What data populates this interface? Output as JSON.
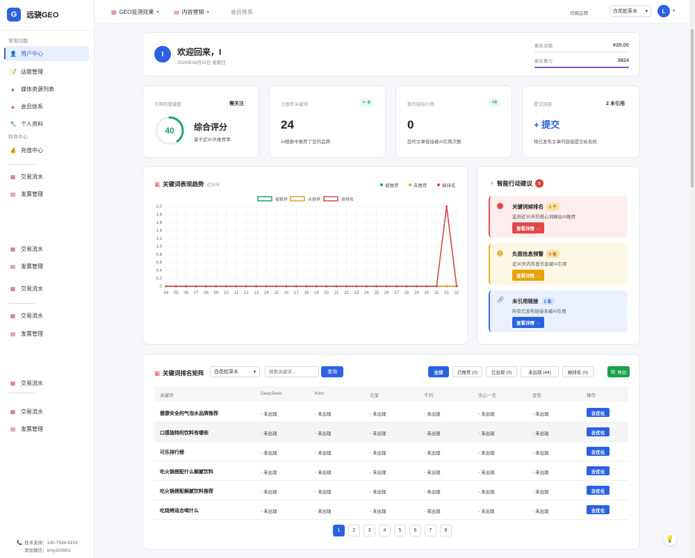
{
  "app": {
    "name": "远骁GEO",
    "logo_letter": "G"
  },
  "sidebar": {
    "section1": "常用功能",
    "section2": "财务中心",
    "items": [
      {
        "label": "用户中心",
        "icon": "user-icon",
        "glyph": "👤",
        "active": true
      },
      {
        "label": "话题管理",
        "icon": "topic-icon",
        "glyph": "📝"
      },
      {
        "label": "媒体资源列表",
        "icon": "media-icon",
        "glyph": "▲"
      },
      {
        "label": "会员体系",
        "icon": "member-icon",
        "glyph": "▲"
      },
      {
        "label": "个人资料",
        "icon": "wrench-icon",
        "glyph": "🔧"
      },
      {
        "label": "充值中心",
        "icon": "recharge-icon",
        "glyph": "💰"
      },
      {
        "label": "交易流水",
        "icon": "chart-icon",
        "glyph": "▦"
      },
      {
        "label": "发票管理",
        "icon": "invoice-icon",
        "glyph": "▤"
      },
      {
        "label": "交易流水",
        "icon": "chart-icon",
        "glyph": "▦"
      },
      {
        "label": "发票管理",
        "icon": "invoice-icon",
        "glyph": "▤"
      },
      {
        "label": "交易流水",
        "icon": "chart-icon",
        "glyph": "▦"
      },
      {
        "label": "交易流水",
        "icon": "chart-icon",
        "glyph": "▦"
      },
      {
        "label": "发票管理",
        "icon": "invoice-icon",
        "glyph": "▤"
      },
      {
        "label": "交易流水",
        "icon": "chart-icon",
        "glyph": "▦"
      },
      {
        "label": "交易流水",
        "icon": "chart-icon",
        "glyph": "▦"
      },
      {
        "label": "发票管理",
        "icon": "invoice-icon",
        "glyph": "▤"
      }
    ],
    "support_phone": "技术支持：130-7534-9103",
    "support_wechat": "添加微信：kmy200501"
  },
  "topbar": {
    "nav": [
      "GEO监测效果",
      "内容营销",
      "会员体系"
    ],
    "brand_label": "切换品牌",
    "brand_value": "白花蛇草水",
    "avatar_letter": "L"
  },
  "welcome": {
    "avatar_letter": "I",
    "title": "欢迎回来，I",
    "date": "2026年08月02日 星期日",
    "balance_label": "剩余余额",
    "balance_value": "¥20.00",
    "compute_label": "剩余算力",
    "compute_value": "3824",
    "compute_fill": 1.0,
    "balance_fill": 0.0
  },
  "stats": {
    "authority": {
      "label": "引用权健康度",
      "badge": "需关注",
      "score": "40",
      "score_fraction": 0.4,
      "title": "综合评分",
      "desc": "基于近30天推荐率"
    },
    "keywords": {
      "label": "已推荐关键词",
      "badge": "+ -6",
      "value": "24",
      "desc": "AI搜索中推荐了您的品牌"
    },
    "links": {
      "label": "我的链接引用",
      "badge": "+0",
      "value": "0",
      "desc": "您的文章链接被AI引用次数"
    },
    "submit": {
      "label": "提交回链",
      "badge": "2 未引用",
      "value": "+ 提交",
      "desc": "将已发布文章的链接提交给系统"
    }
  },
  "trend": {
    "title": "关键词表现趋势",
    "subtitle": "近30天",
    "legend_top": [
      "被推荐",
      "未推荐",
      "掉排名"
    ],
    "legend_colors": [
      "#22a06b",
      "#e0a030",
      "#d04848"
    ]
  },
  "chart_data": {
    "type": "line",
    "categories": [
      "04",
      "05",
      "06",
      "07",
      "08",
      "09",
      "10",
      "11",
      "12",
      "13",
      "14",
      "15",
      "16",
      "17",
      "18",
      "19",
      "20",
      "21",
      "22",
      "23",
      "24",
      "25",
      "26",
      "27",
      "28",
      "29",
      "30",
      "31",
      "01",
      "02"
    ],
    "series": [
      {
        "name": "被推荐",
        "color": "#22a06b",
        "values": [
          0,
          0,
          0,
          0,
          0,
          0,
          0,
          0,
          0,
          0,
          0,
          0,
          0,
          0,
          0,
          0,
          0,
          0,
          0,
          0,
          0,
          0,
          0,
          0,
          0,
          0,
          0,
          0,
          0,
          0
        ]
      },
      {
        "name": "未推荐",
        "color": "#e0a030",
        "values": [
          0,
          0,
          0,
          0,
          0,
          0,
          0,
          0,
          0,
          0,
          0,
          0,
          0,
          0,
          0,
          0,
          0,
          0,
          0,
          0,
          0,
          0,
          0,
          0,
          0,
          0,
          0,
          0,
          0,
          0
        ]
      },
      {
        "name": "掉排名",
        "color": "#d04848",
        "values": [
          0,
          0,
          0,
          0,
          0,
          0,
          0,
          0,
          0,
          0,
          0,
          0,
          0,
          0,
          0,
          0,
          0,
          0,
          0,
          0,
          0,
          0,
          0,
          0,
          0,
          0,
          0,
          0,
          2,
          0
        ]
      }
    ],
    "yticks": [
      "0",
      "0.2",
      "0.4",
      "0.6",
      "0.8",
      "1.0",
      "1.2",
      "1.4",
      "1.6",
      "1.8",
      "2.0"
    ],
    "ylim": [
      0,
      2
    ],
    "grid": true,
    "legend": "top-center"
  },
  "actions": {
    "title": "智能行动建议",
    "count": "0",
    "items": [
      {
        "title": "关键词掉排名",
        "count": "0 个",
        "desc": "监测近30天的核心词掉出AI推荐",
        "button": "查看详情 →"
      },
      {
        "title": "负面信息预警",
        "count": "0 条",
        "desc": "近30天内负面信息被AI引用",
        "button": "查看详情 →"
      },
      {
        "title": "未引用链接",
        "count": "2 条",
        "desc": "所有已发布链接未被AI引用",
        "button": "查看详情 →"
      }
    ]
  },
  "matrix": {
    "title": "关键词排名矩阵",
    "brand": "白花蛇草水",
    "search_placeholder": "搜索关键词...",
    "query_btn": "查询",
    "filters": [
      "全部",
      "已推荐 (0)",
      "已出现 (0)",
      "未出现 (44)",
      "掉排名 (0)"
    ],
    "export_btn": "导出",
    "columns": [
      "关键词",
      "DeepSeek",
      "Kimi",
      "元宝",
      "千问",
      "文心一言",
      "豆包",
      "操作"
    ],
    "rows": [
      {
        "keyword": "健康安全的气泡水品牌推荐",
        "cells": [
          "未出现",
          "未出现",
          "未出现",
          "未出现",
          "未出现",
          "未出现"
        ],
        "action": "去优化"
      },
      {
        "keyword": "口感独特的饮料有哪些",
        "cells": [
          "未出现",
          "未出现",
          "未出现",
          "未出现",
          "未出现",
          "未出现"
        ],
        "action": "去优化"
      },
      {
        "keyword": "可乐排行榜",
        "cells": [
          "未出现",
          "未出现",
          "未出现",
          "未出现",
          "未出现",
          "未出现"
        ],
        "action": "去优化"
      },
      {
        "keyword": "吃火锅搭配什么解腻饮料",
        "cells": [
          "未出现",
          "未出现",
          "未出现",
          "未出现",
          "未出现",
          "未出现"
        ],
        "action": "去优化"
      },
      {
        "keyword": "吃火锅搭配解腻饮料推荐",
        "cells": [
          "未出现",
          "未出现",
          "未出现",
          "未出现",
          "未出现",
          "未出现"
        ],
        "action": "去优化"
      },
      {
        "keyword": "吃烧烤适合喝什么",
        "cells": [
          "未出现",
          "未出现",
          "未出现",
          "未出现",
          "未出现",
          "未出现"
        ],
        "action": "去优化"
      }
    ],
    "pages": [
      "1",
      "2",
      "3",
      "4",
      "5",
      "6",
      "7",
      "8"
    ]
  }
}
